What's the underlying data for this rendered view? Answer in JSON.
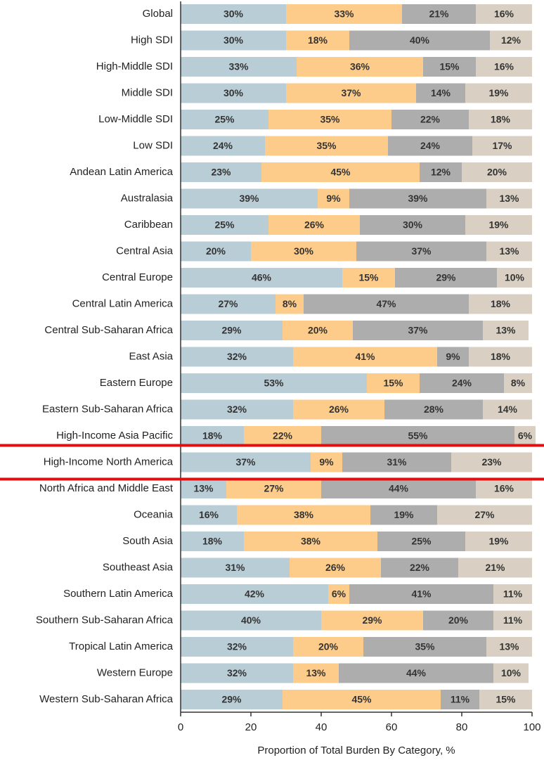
{
  "chart_data": {
    "type": "stacked-barh",
    "xlabel": "Proportion of Total Burden By Category, %",
    "categories": [
      "Global",
      "High SDI",
      "High-Middle SDI",
      "Middle SDI",
      "Low-Middle SDI",
      "Low SDI",
      "Andean Latin America",
      "Australasia",
      "Caribbean",
      "Central Asia",
      "Central Europe",
      "Central Latin America",
      "Central Sub-Saharan Africa",
      "East Asia",
      "Eastern Europe",
      "Eastern Sub-Saharan Africa",
      "High-Income Asia Pacific",
      "High-Income North America",
      "North Africa and Middle East",
      "Oceania",
      "South Asia",
      "Southeast Asia",
      "Southern Latin America",
      "Southern Sub-Saharan Africa",
      "Tropical Latin America",
      "Western Europe",
      "Western Sub-Saharan Africa"
    ],
    "series": [
      {
        "color": "#b9cdd6",
        "values": [
          30,
          30,
          33,
          30,
          25,
          24,
          23,
          39,
          25,
          20,
          46,
          27,
          29,
          32,
          53,
          32,
          18,
          37,
          13,
          16,
          18,
          31,
          42,
          40,
          32,
          32,
          29
        ],
        "value_labels": [
          "30%",
          "30%",
          "33%",
          "30%",
          "25%",
          "24%",
          "23%",
          "39%",
          "25%",
          "20%",
          "46%",
          "27%",
          "29%",
          "32%",
          "53%",
          "32%",
          "18%",
          "37%",
          "13%",
          "16%",
          "18%",
          "31%",
          "42%",
          "40%",
          "32%",
          "32%",
          "29%"
        ]
      },
      {
        "color": "#fdcb8a",
        "values": [
          33,
          18,
          36,
          37,
          35,
          35,
          45,
          9,
          26,
          30,
          15,
          8,
          20,
          41,
          15,
          26,
          22,
          9,
          27,
          38,
          38,
          26,
          6,
          29,
          20,
          13,
          45
        ],
        "value_labels": [
          "33%",
          "18%",
          "36%",
          "37%",
          "35%",
          "35%",
          "45%",
          "9%",
          "26%",
          "30%",
          "15%",
          "8%",
          "20%",
          "41%",
          "15%",
          "26%",
          "22%",
          "9%",
          "27%",
          "38%",
          "38%",
          "26%",
          "6%",
          "29%",
          "20%",
          "13%",
          "45%"
        ]
      },
      {
        "color": "#adadad",
        "values": [
          21,
          40,
          15,
          14,
          22,
          24,
          12,
          39,
          30,
          37,
          29,
          47,
          37,
          9,
          24,
          28,
          55,
          31,
          44,
          19,
          25,
          22,
          41,
          20,
          35,
          44,
          11
        ],
        "value_labels": [
          "21%",
          "40%",
          "15%",
          "14%",
          "22%",
          "24%",
          "12%",
          "39%",
          "30%",
          "37%",
          "29%",
          "47%",
          "37%",
          "9%",
          "24%",
          "28%",
          "55%",
          "31%",
          "44%",
          "19%",
          "25%",
          "22%",
          "41%",
          "20%",
          "35%",
          "44%",
          "11%"
        ]
      },
      {
        "color": "#d9d0c3",
        "values": [
          16,
          12,
          16,
          19,
          18,
          17,
          20,
          13,
          19,
          13,
          10,
          18,
          13,
          18,
          8,
          14,
          6,
          23,
          16,
          27,
          19,
          21,
          11,
          11,
          13,
          10,
          15
        ],
        "value_labels": [
          "16%",
          "12%",
          "16%",
          "19%",
          "18%",
          "17%",
          "20%",
          "13%",
          "19%",
          "13%",
          "10%",
          "18%",
          "13%",
          "18%",
          "8%",
          "14%",
          "6%",
          "23%",
          "16%",
          "27%",
          "19%",
          "21%",
          "11%",
          "11%",
          "13%",
          "10%",
          "15%"
        ]
      }
    ],
    "xlim": [
      0,
      100
    ],
    "xticks": [
      0,
      20,
      40,
      60,
      80,
      100
    ]
  }
}
